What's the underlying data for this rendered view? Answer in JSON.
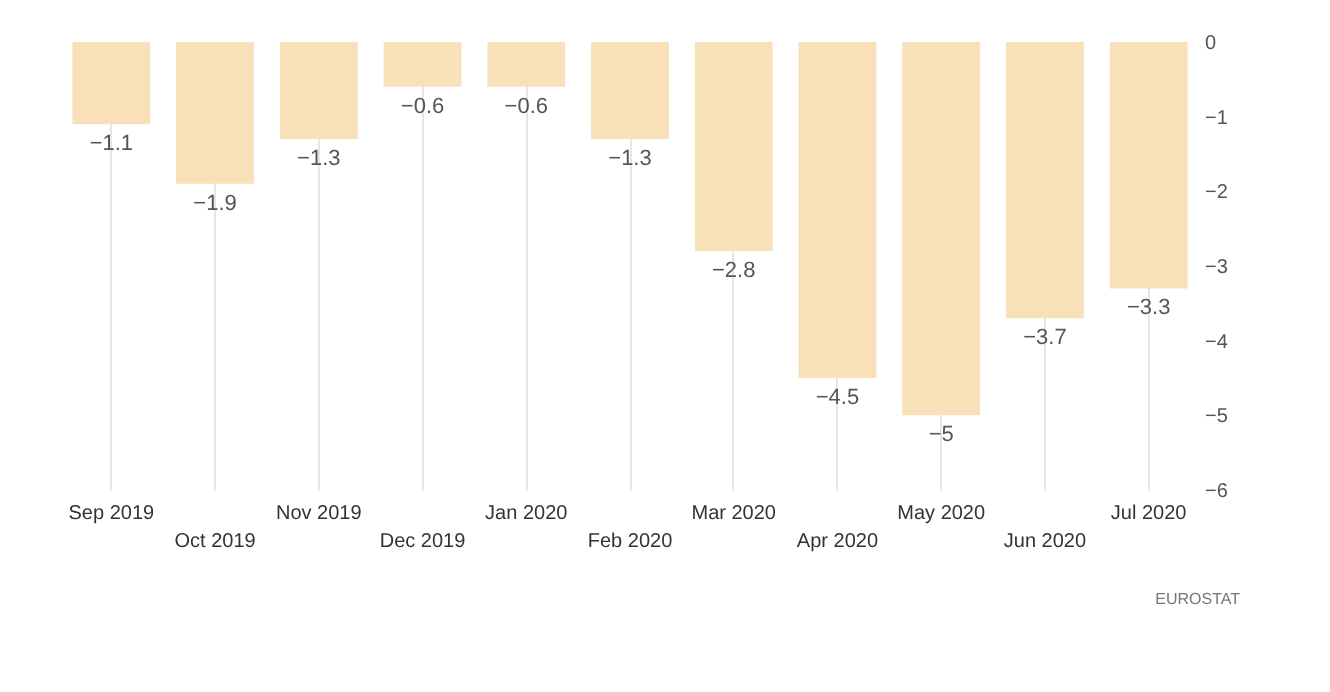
{
  "chart_data": {
    "type": "bar",
    "categories": [
      "Sep 2019",
      "Oct 2019",
      "Nov 2019",
      "Dec 2019",
      "Jan 2020",
      "Feb 2020",
      "Mar 2020",
      "Apr 2020",
      "May 2020",
      "Jun 2020",
      "Jul 2020"
    ],
    "values": [
      -1.1,
      -1.9,
      -1.3,
      -0.6,
      -0.6,
      -1.3,
      -2.8,
      -4.5,
      -5,
      -3.7,
      -3.3
    ],
    "color": "#f8e0b8",
    "ylim": [
      -6,
      0
    ],
    "yticks": [
      0,
      -1,
      -2,
      -3,
      -4,
      -5,
      -6
    ],
    "grid": "x",
    "data_labels": true,
    "annotations": [
      "EUROSTAT"
    ]
  }
}
